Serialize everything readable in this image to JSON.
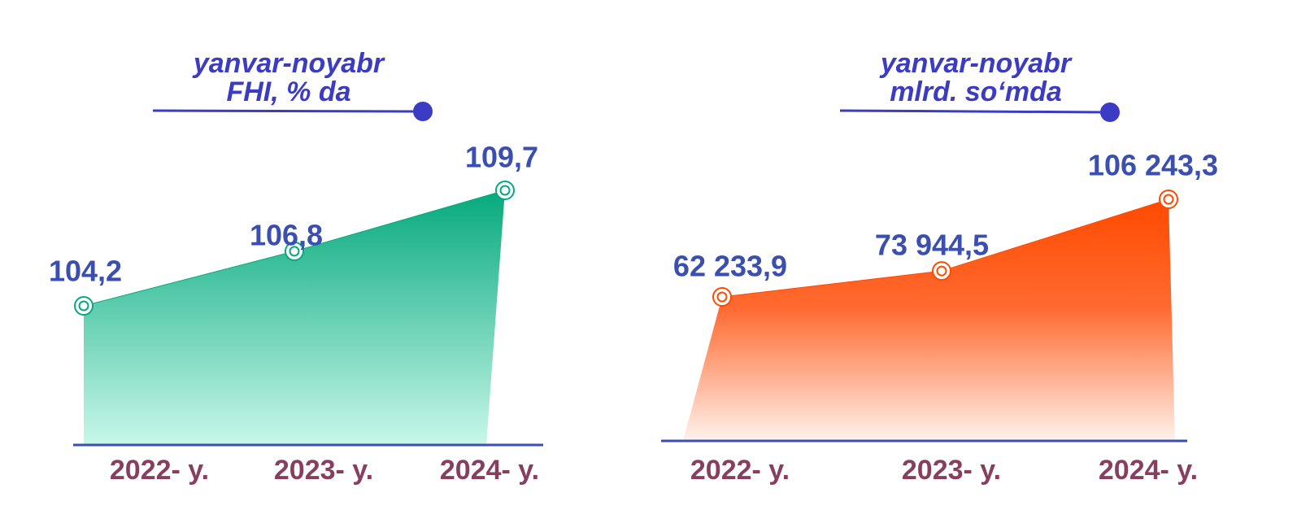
{
  "chart_data": [
    {
      "type": "area",
      "title": "yanvar-noyabr",
      "subtitle": "FHI, % da",
      "categories": [
        "2022- y.",
        "2023- y.",
        "2024- y."
      ],
      "series": [
        {
          "color": "#05a97c",
          "values": [
            104.2,
            106.8,
            109.7
          ],
          "value_labels": [
            "104,2",
            "106,8",
            "109,7"
          ]
        }
      ]
    },
    {
      "type": "area",
      "title": "yanvar-noyabr",
      "subtitle": "mlrd. so‘mda",
      "categories": [
        "2022- y.",
        "2023- y.",
        "2024- y."
      ],
      "series": [
        {
          "color": "#ff4a00",
          "values": [
            62233.9,
            73944.5,
            106243.3
          ],
          "value_labels": [
            "62 233,9",
            "73 944,5",
            "106 243,3"
          ]
        }
      ]
    }
  ]
}
